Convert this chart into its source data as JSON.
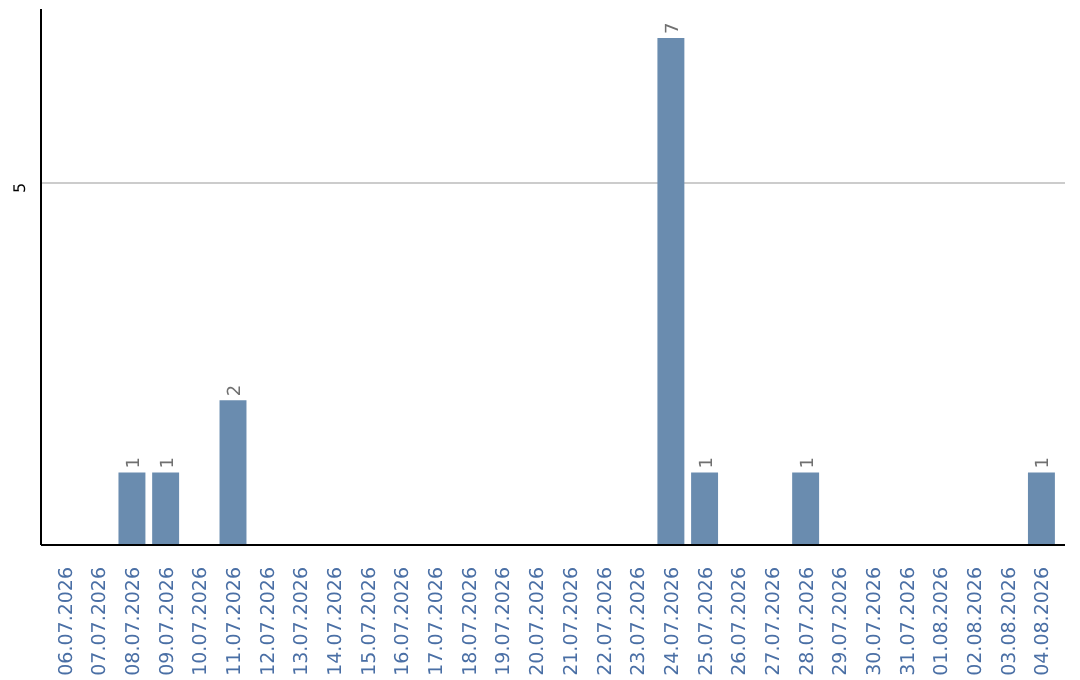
{
  "chart_data": {
    "type": "bar",
    "categories": [
      "06.07.2026",
      "07.07.2026",
      "08.07.2026",
      "09.07.2026",
      "10.07.2026",
      "11.07.2026",
      "12.07.2026",
      "13.07.2026",
      "14.07.2026",
      "15.07.2026",
      "16.07.2026",
      "17.07.2026",
      "18.07.2026",
      "19.07.2026",
      "20.07.2026",
      "21.07.2026",
      "22.07.2026",
      "23.07.2026",
      "24.07.2026",
      "25.07.2026",
      "26.07.2026",
      "27.07.2026",
      "28.07.2026",
      "29.07.2026",
      "30.07.2026",
      "31.07.2026",
      "01.08.2026",
      "02.08.2026",
      "03.08.2026",
      "04.08.2026"
    ],
    "values": [
      0,
      0,
      1,
      1,
      0,
      2,
      0,
      0,
      0,
      0,
      0,
      0,
      0,
      0,
      0,
      0,
      0,
      0,
      7,
      1,
      0,
      0,
      1,
      0,
      0,
      0,
      0,
      0,
      0,
      1
    ],
    "value_labels": [
      null,
      null,
      "1",
      "1",
      null,
      "2",
      null,
      null,
      null,
      null,
      null,
      null,
      null,
      null,
      null,
      null,
      null,
      null,
      "7",
      "1",
      null,
      null,
      "1",
      null,
      null,
      null,
      null,
      null,
      null,
      "1"
    ],
    "color": "#6a8caf",
    "ylim": [
      0,
      7.4
    ],
    "yticks": [
      5
    ],
    "grid": "y"
  }
}
